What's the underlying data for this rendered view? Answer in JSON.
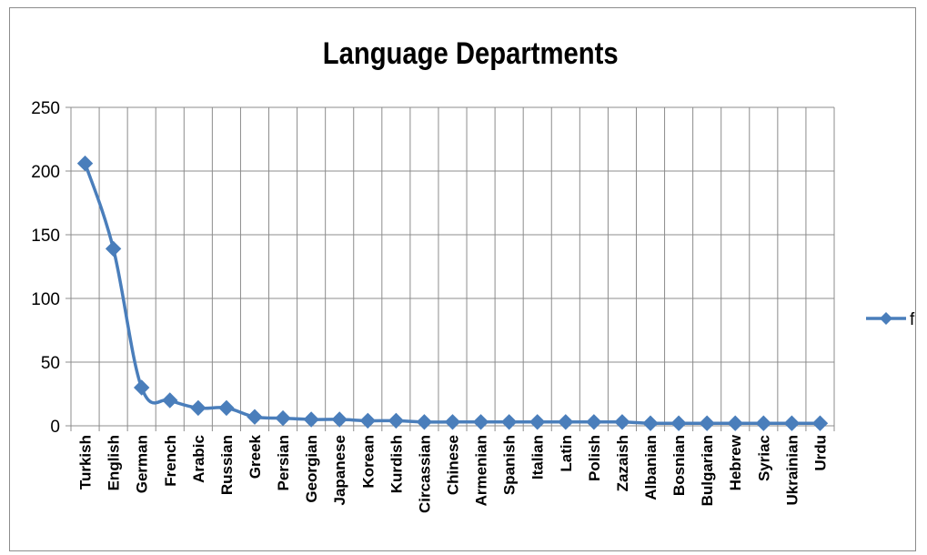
{
  "chart_data": {
    "type": "line",
    "title": "Language Departments",
    "xlabel": "",
    "ylabel": "",
    "categories": [
      "Turkish",
      "English",
      "German",
      "French",
      "Arabic",
      "Russian",
      "Greek",
      "Persian",
      "Georgian",
      "Japanese",
      "Korean",
      "Kurdish",
      "Circassian",
      "Chinese",
      "Armenian",
      "Spanish",
      "Italian",
      "Latin",
      "Polish",
      "Zazaish",
      "Albanian",
      "Bosnian",
      "Bulgarian",
      "Hebrew",
      "Syriac",
      "Ukrainian",
      "Urdu"
    ],
    "series": [
      {
        "name": "f",
        "values": [
          206,
          139,
          30,
          20,
          14,
          14,
          7,
          6,
          5,
          5,
          4,
          4,
          3,
          3,
          3,
          3,
          3,
          3,
          3,
          3,
          2,
          2,
          2,
          2,
          2,
          2,
          2
        ]
      }
    ],
    "ylim": [
      0,
      250
    ],
    "yticks": [
      0,
      50,
      100,
      150,
      200,
      250
    ],
    "grid": true,
    "legend_position": "right",
    "colors": {
      "series": "#4a7ebb",
      "grid": "#8c8c8c",
      "frame": "#8c8c8c"
    },
    "marker": "diamond"
  }
}
